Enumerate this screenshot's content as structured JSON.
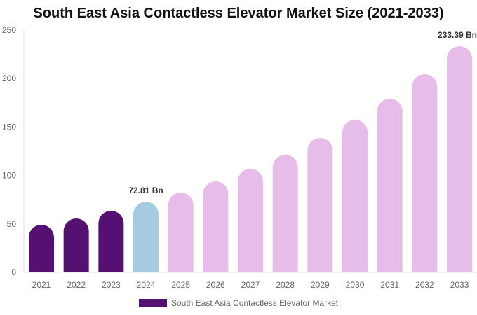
{
  "chart_data": {
    "type": "bar",
    "title": "South East Asia Contactless Elevator Market Size (2021-2033)",
    "categories": [
      "2021",
      "2022",
      "2023",
      "2024",
      "2025",
      "2026",
      "2027",
      "2028",
      "2029",
      "2030",
      "2031",
      "2032",
      "2033"
    ],
    "series": [
      {
        "name": "South East Asia Contactless Elevator Market",
        "values": [
          49.1,
          55.6,
          63.6,
          72.81,
          82.4,
          93.9,
          106.9,
          121.4,
          138.7,
          157.5,
          179.2,
          204.5,
          233.39
        ]
      }
    ],
    "bar_colors": [
      "#541171",
      "#541171",
      "#541171",
      "#a4cbdf",
      "#e6bde8",
      "#e6bde8",
      "#e6bde8",
      "#e6bde8",
      "#e6bde8",
      "#e6bde8",
      "#e6bde8",
      "#e6bde8",
      "#e6bde8"
    ],
    "data_labels": {
      "3": "72.81 Bn",
      "12": "233.39 Bn"
    },
    "ylim": [
      0,
      250
    ],
    "yticks": [
      0,
      50,
      100,
      150,
      200,
      250
    ],
    "xlabel": "",
    "ylabel": "",
    "grid": false,
    "legend": "bottom",
    "legend_color": "#541171"
  }
}
